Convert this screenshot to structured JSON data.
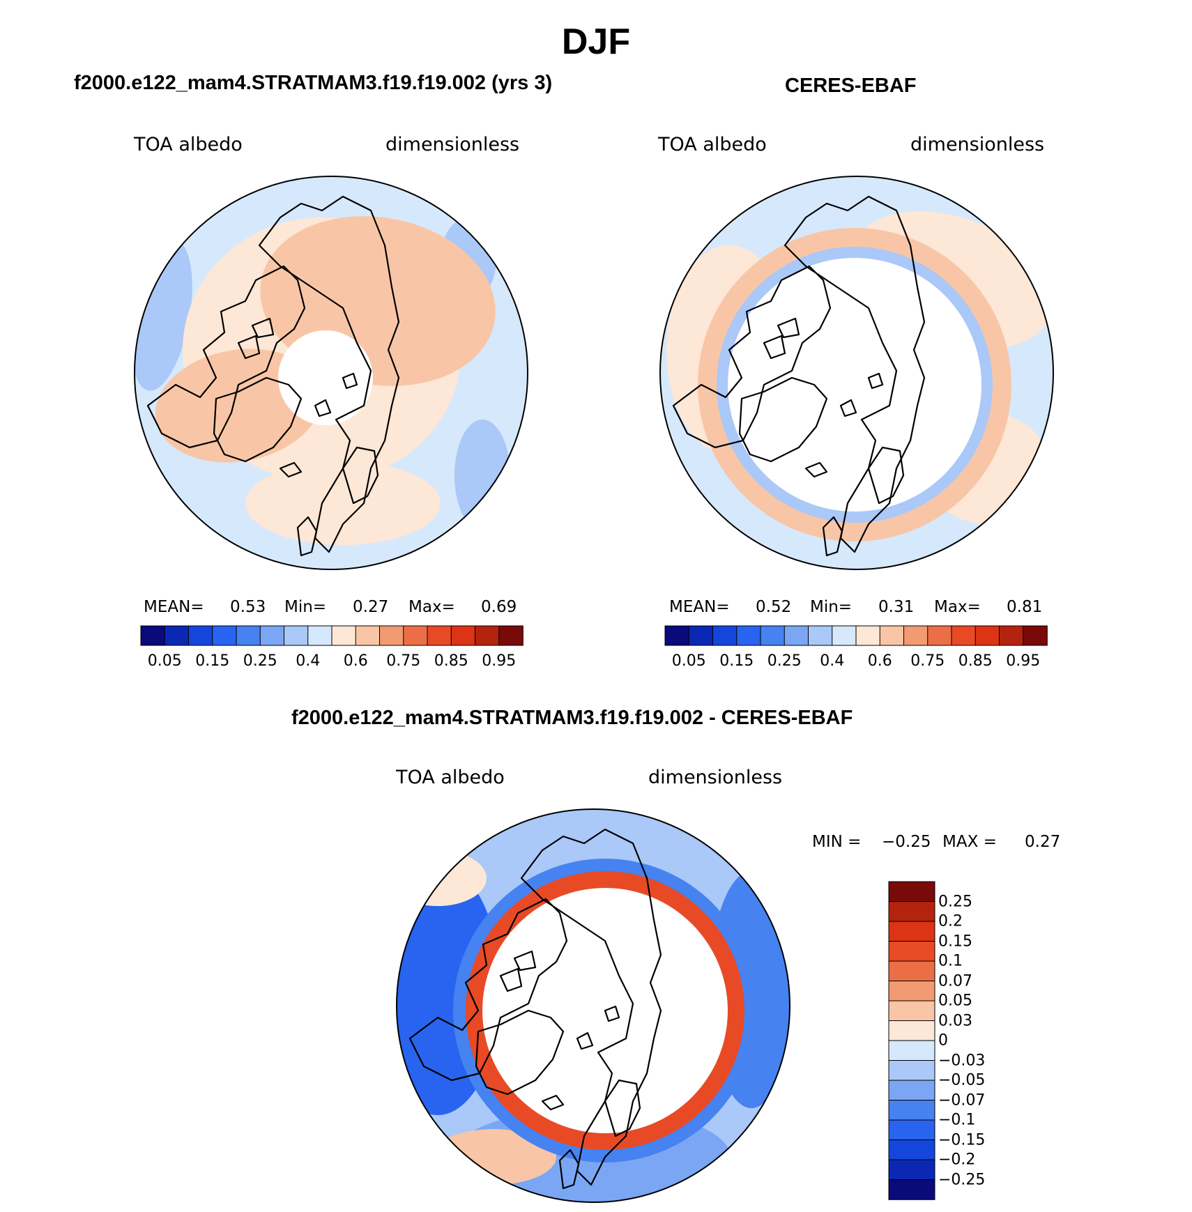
{
  "main_title": "DJF",
  "palette_main": [
    "#0a0a7a",
    "#0a28b4",
    "#1446dc",
    "#2864f0",
    "#4682f0",
    "#7aa6f4",
    "#aac8f8",
    "#d6e8fc",
    "#fde7d6",
    "#f8c6a6",
    "#f29a72",
    "#ec6e46",
    "#e84a26",
    "#dc3414",
    "#b4230e",
    "#7a0a0a"
  ],
  "palette_diff": [
    "#0a0a7a",
    "#0a28b4",
    "#1446dc",
    "#2864f0",
    "#4682f0",
    "#7aa6f4",
    "#aac8f8",
    "#d6e8fc",
    "#fde7d6",
    "#f8c6a6",
    "#f29a72",
    "#ec6e46",
    "#e84a26",
    "#dc3414",
    "#b4230e",
    "#7a0a0a"
  ],
  "chart_data": [
    {
      "type": "heatmap",
      "title": "f2000.e122_mam4.STRATMAM3.f19.f19.002 (yrs 3)",
      "variable": "TOA albedo",
      "units": "dimensionless",
      "projection": "north polar stereographic",
      "stats": {
        "mean_label": "MEAN=",
        "mean": "0.53",
        "min_label": "Min=",
        "min": "0.27",
        "max_label": "Max=",
        "max": "0.69"
      },
      "colorbar_ticks": [
        "0.05",
        "0.15",
        "0.25",
        "0.4",
        "0.6",
        "0.75",
        "0.85",
        "0.95"
      ],
      "colorbar_levels": 16
    },
    {
      "type": "heatmap",
      "title": "CERES-EBAF",
      "variable": "TOA albedo",
      "units": "dimensionless",
      "projection": "north polar stereographic",
      "stats": {
        "mean_label": "MEAN=",
        "mean": "0.52",
        "min_label": "Min=",
        "min": "0.31",
        "max_label": "Max=",
        "max": "0.81"
      },
      "colorbar_ticks": [
        "0.05",
        "0.15",
        "0.25",
        "0.4",
        "0.6",
        "0.75",
        "0.85",
        "0.95"
      ],
      "colorbar_levels": 16
    },
    {
      "type": "heatmap",
      "title": "f2000.e122_mam4.STRATMAM3.f19.f19.002 - CERES-EBAF",
      "variable": "TOA albedo",
      "units": "dimensionless",
      "projection": "north polar stereographic",
      "stats": {
        "min_label": "MIN =",
        "min": "−0.25",
        "max_label": "MAX =",
        "max": "0.27"
      },
      "colorbar_ticks": [
        "0.25",
        "0.2",
        "0.15",
        "0.1",
        "0.07",
        "0.05",
        "0.03",
        "0",
        "−0.03",
        "−0.05",
        "−0.07",
        "−0.1",
        "−0.15",
        "−0.2",
        "−0.25"
      ],
      "colorbar_levels": 16
    }
  ]
}
